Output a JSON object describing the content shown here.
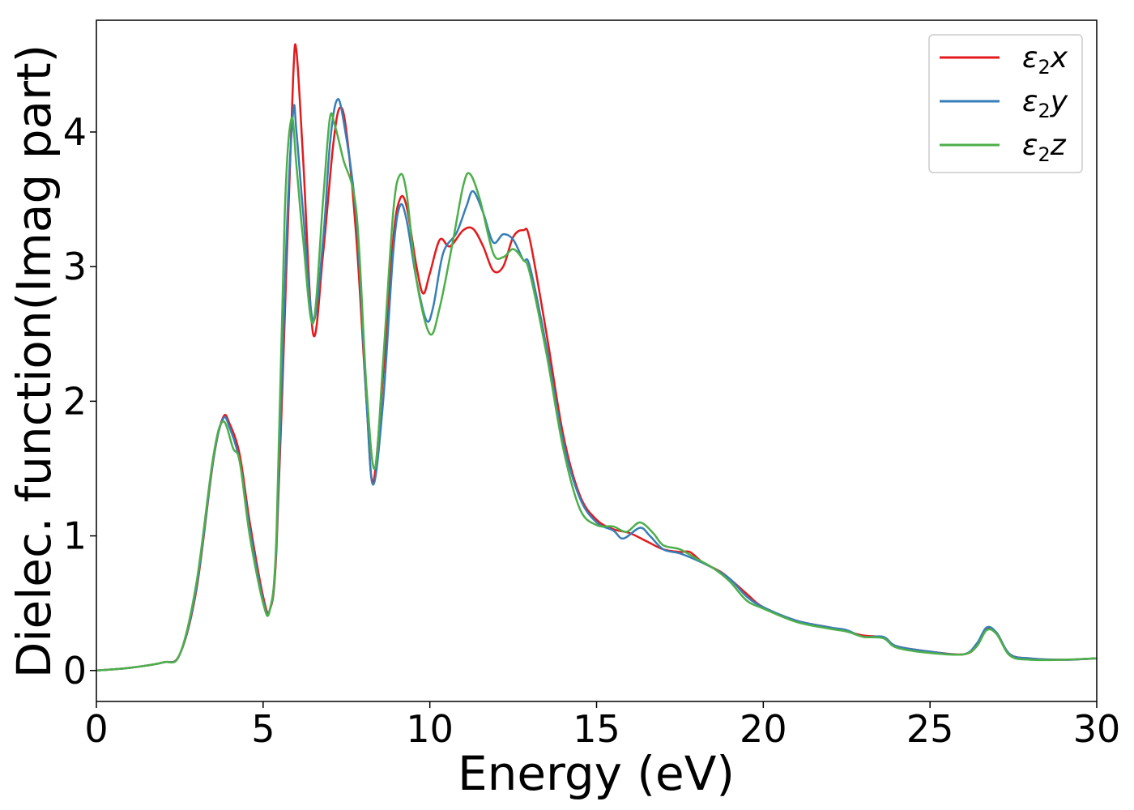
{
  "chart_data": {
    "type": "line",
    "xlabel": "Energy (eV)",
    "ylabel": "Dielec. function(Imag part)",
    "xlim": [
      0,
      30
    ],
    "ylim": [
      -0.23,
      4.83
    ],
    "xticks": [
      0,
      5,
      10,
      15,
      20,
      25,
      30
    ],
    "yticks": [
      0,
      1,
      2,
      3,
      4
    ],
    "grid": false,
    "legend_position": "top-right",
    "series": [
      {
        "name": "ε2x",
        "legend_main": "ε",
        "legend_sub": "2",
        "legend_var": "x",
        "color": "#e41a1c",
        "points": [
          [
            0,
            0.0
          ],
          [
            1,
            0.02
          ],
          [
            2,
            0.06
          ],
          [
            2.5,
            0.12
          ],
          [
            3.0,
            0.6
          ],
          [
            3.5,
            1.55
          ],
          [
            3.8,
            1.88
          ],
          [
            4.0,
            1.83
          ],
          [
            4.3,
            1.6
          ],
          [
            4.6,
            1.1
          ],
          [
            5.0,
            0.55
          ],
          [
            5.2,
            0.45
          ],
          [
            5.4,
            0.9
          ],
          [
            5.7,
            3.0
          ],
          [
            5.9,
            4.4
          ],
          [
            6.0,
            4.6
          ],
          [
            6.2,
            3.8
          ],
          [
            6.5,
            2.5
          ],
          [
            6.8,
            3.1
          ],
          [
            7.1,
            3.9
          ],
          [
            7.3,
            4.18
          ],
          [
            7.5,
            4.0
          ],
          [
            7.8,
            3.2
          ],
          [
            8.1,
            2.0
          ],
          [
            8.3,
            1.4
          ],
          [
            8.6,
            2.2
          ],
          [
            8.9,
            3.2
          ],
          [
            9.1,
            3.5
          ],
          [
            9.3,
            3.45
          ],
          [
            9.6,
            3.0
          ],
          [
            9.8,
            2.8
          ],
          [
            10.0,
            2.95
          ],
          [
            10.3,
            3.2
          ],
          [
            10.6,
            3.15
          ],
          [
            11.0,
            3.27
          ],
          [
            11.3,
            3.28
          ],
          [
            11.6,
            3.15
          ],
          [
            11.9,
            2.97
          ],
          [
            12.2,
            3.0
          ],
          [
            12.5,
            3.22
          ],
          [
            12.8,
            3.27
          ],
          [
            13.0,
            3.2
          ],
          [
            13.5,
            2.5
          ],
          [
            14.0,
            1.75
          ],
          [
            14.5,
            1.3
          ],
          [
            15.0,
            1.12
          ],
          [
            15.5,
            1.05
          ],
          [
            16.0,
            1.02
          ],
          [
            16.5,
            0.96
          ],
          [
            17.0,
            0.9
          ],
          [
            17.5,
            0.88
          ],
          [
            17.8,
            0.88
          ],
          [
            18.2,
            0.8
          ],
          [
            18.8,
            0.72
          ],
          [
            19.5,
            0.57
          ],
          [
            20.0,
            0.47
          ],
          [
            21.0,
            0.37
          ],
          [
            22.0,
            0.32
          ],
          [
            22.5,
            0.29
          ],
          [
            23.0,
            0.26
          ],
          [
            23.5,
            0.25
          ],
          [
            23.7,
            0.23
          ],
          [
            24.0,
            0.18
          ],
          [
            25.0,
            0.14
          ],
          [
            26.0,
            0.12
          ],
          [
            26.4,
            0.18
          ],
          [
            26.7,
            0.31
          ],
          [
            27.0,
            0.27
          ],
          [
            27.4,
            0.12
          ],
          [
            28.0,
            0.09
          ],
          [
            29.0,
            0.08
          ],
          [
            30.0,
            0.09
          ]
        ]
      },
      {
        "name": "ε2y",
        "legend_main": "ε",
        "legend_sub": "2",
        "legend_var": "y",
        "color": "#377eb8",
        "points": [
          [
            0,
            0.0
          ],
          [
            1,
            0.02
          ],
          [
            2,
            0.06
          ],
          [
            2.5,
            0.12
          ],
          [
            3.0,
            0.62
          ],
          [
            3.5,
            1.56
          ],
          [
            3.8,
            1.87
          ],
          [
            4.0,
            1.8
          ],
          [
            4.3,
            1.55
          ],
          [
            4.6,
            1.05
          ],
          [
            5.0,
            0.52
          ],
          [
            5.2,
            0.45
          ],
          [
            5.4,
            0.95
          ],
          [
            5.7,
            3.2
          ],
          [
            5.9,
            4.15
          ],
          [
            6.0,
            4.0
          ],
          [
            6.2,
            3.4
          ],
          [
            6.5,
            2.6
          ],
          [
            6.8,
            3.2
          ],
          [
            7.0,
            3.9
          ],
          [
            7.2,
            4.23
          ],
          [
            7.4,
            4.1
          ],
          [
            7.8,
            3.35
          ],
          [
            8.1,
            2.0
          ],
          [
            8.3,
            1.38
          ],
          [
            8.6,
            2.0
          ],
          [
            8.9,
            3.1
          ],
          [
            9.1,
            3.45
          ],
          [
            9.3,
            3.35
          ],
          [
            9.6,
            2.9
          ],
          [
            9.9,
            2.6
          ],
          [
            10.1,
            2.7
          ],
          [
            10.4,
            3.1
          ],
          [
            10.8,
            3.25
          ],
          [
            11.1,
            3.45
          ],
          [
            11.3,
            3.56
          ],
          [
            11.6,
            3.4
          ],
          [
            11.9,
            3.18
          ],
          [
            12.2,
            3.24
          ],
          [
            12.5,
            3.2
          ],
          [
            12.8,
            3.05
          ],
          [
            13.0,
            3.0
          ],
          [
            13.5,
            2.4
          ],
          [
            14.0,
            1.7
          ],
          [
            14.5,
            1.28
          ],
          [
            15.0,
            1.1
          ],
          [
            15.5,
            1.04
          ],
          [
            15.8,
            0.98
          ],
          [
            16.3,
            1.06
          ],
          [
            16.6,
            1.0
          ],
          [
            17.0,
            0.9
          ],
          [
            17.5,
            0.87
          ],
          [
            18.0,
            0.82
          ],
          [
            18.5,
            0.76
          ],
          [
            19.0,
            0.68
          ],
          [
            19.5,
            0.55
          ],
          [
            20.0,
            0.47
          ],
          [
            21.0,
            0.37
          ],
          [
            22.0,
            0.32
          ],
          [
            22.5,
            0.3
          ],
          [
            23.0,
            0.25
          ],
          [
            23.6,
            0.25
          ],
          [
            24.0,
            0.18
          ],
          [
            25.0,
            0.14
          ],
          [
            26.0,
            0.12
          ],
          [
            26.4,
            0.2
          ],
          [
            26.7,
            0.32
          ],
          [
            27.0,
            0.28
          ],
          [
            27.4,
            0.12
          ],
          [
            28.0,
            0.09
          ],
          [
            29.0,
            0.08
          ],
          [
            30.0,
            0.09
          ]
        ]
      },
      {
        "name": "ε2z",
        "legend_main": "ε",
        "legend_sub": "2",
        "legend_var": "z",
        "color": "#4daf4a",
        "points": [
          [
            0,
            0.0
          ],
          [
            1,
            0.02
          ],
          [
            2,
            0.06
          ],
          [
            2.5,
            0.12
          ],
          [
            3.0,
            0.65
          ],
          [
            3.5,
            1.58
          ],
          [
            3.8,
            1.85
          ],
          [
            4.1,
            1.65
          ],
          [
            4.3,
            1.55
          ],
          [
            4.6,
            1.0
          ],
          [
            5.0,
            0.5
          ],
          [
            5.2,
            0.45
          ],
          [
            5.4,
            1.0
          ],
          [
            5.65,
            3.4
          ],
          [
            5.85,
            4.1
          ],
          [
            6.0,
            3.75
          ],
          [
            6.2,
            3.2
          ],
          [
            6.5,
            2.58
          ],
          [
            6.8,
            3.5
          ],
          [
            7.0,
            4.1
          ],
          [
            7.15,
            4.05
          ],
          [
            7.4,
            3.8
          ],
          [
            7.8,
            3.4
          ],
          [
            8.1,
            2.1
          ],
          [
            8.35,
            1.5
          ],
          [
            8.6,
            2.3
          ],
          [
            8.9,
            3.4
          ],
          [
            9.1,
            3.68
          ],
          [
            9.3,
            3.55
          ],
          [
            9.6,
            2.9
          ],
          [
            10.0,
            2.5
          ],
          [
            10.3,
            2.7
          ],
          [
            10.7,
            3.2
          ],
          [
            11.0,
            3.6
          ],
          [
            11.2,
            3.69
          ],
          [
            11.5,
            3.5
          ],
          [
            11.9,
            3.1
          ],
          [
            12.2,
            3.07
          ],
          [
            12.5,
            3.13
          ],
          [
            12.8,
            3.05
          ],
          [
            13.0,
            2.95
          ],
          [
            13.5,
            2.35
          ],
          [
            14.0,
            1.65
          ],
          [
            14.5,
            1.2
          ],
          [
            15.0,
            1.08
          ],
          [
            15.5,
            1.07
          ],
          [
            15.9,
            1.03
          ],
          [
            16.3,
            1.1
          ],
          [
            16.7,
            1.02
          ],
          [
            17.0,
            0.93
          ],
          [
            17.5,
            0.9
          ],
          [
            18.0,
            0.83
          ],
          [
            18.5,
            0.76
          ],
          [
            19.0,
            0.66
          ],
          [
            19.5,
            0.52
          ],
          [
            20.0,
            0.46
          ],
          [
            21.0,
            0.36
          ],
          [
            22.0,
            0.31
          ],
          [
            22.5,
            0.29
          ],
          [
            23.0,
            0.25
          ],
          [
            23.6,
            0.24
          ],
          [
            24.0,
            0.17
          ],
          [
            25.0,
            0.13
          ],
          [
            26.0,
            0.12
          ],
          [
            26.4,
            0.18
          ],
          [
            26.7,
            0.3
          ],
          [
            27.0,
            0.27
          ],
          [
            27.4,
            0.11
          ],
          [
            28.0,
            0.08
          ],
          [
            29.0,
            0.08
          ],
          [
            30.0,
            0.09
          ]
        ]
      }
    ]
  }
}
